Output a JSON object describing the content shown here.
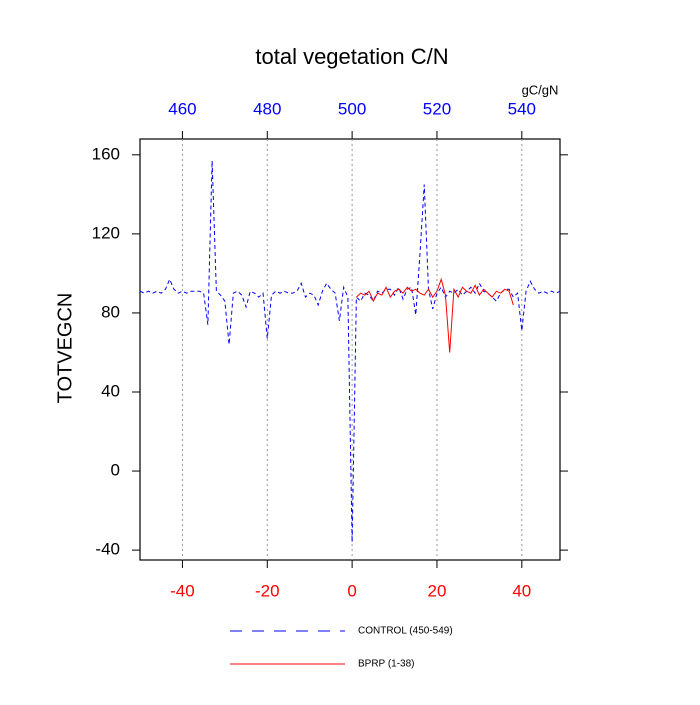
{
  "chart_data": {
    "type": "line",
    "title": "total vegetation C/N",
    "ylabel": "TOTVEGCN",
    "x2label": "gC/gN",
    "xlim": [
      -50,
      49
    ],
    "xticks": [
      -40,
      -20,
      0,
      20,
      40
    ],
    "xtick_color": "#ff0000",
    "x2lim": [
      450,
      549
    ],
    "x2ticks": [
      460,
      480,
      500,
      520,
      540
    ],
    "x2tick_color": "#0000ff",
    "ylim": [
      -45,
      168
    ],
    "yticks": [
      -40,
      0,
      40,
      80,
      120,
      160
    ],
    "grid": true,
    "series": [
      {
        "name": "CONTROL (450-549)",
        "color": "#0000ff",
        "dashed": true,
        "x": [
          -50,
          -49,
          -48,
          -47,
          -46,
          -45,
          -44,
          -43,
          -42,
          -41,
          -40,
          -39,
          -38,
          -37,
          -36,
          -35,
          -34,
          -33,
          -32,
          -31,
          -30,
          -29,
          -28,
          -27,
          -26,
          -25,
          -24,
          -23,
          -22,
          -21,
          -20,
          -19,
          -18,
          -17,
          -16,
          -15,
          -14,
          -13,
          -12,
          -11,
          -10,
          -9,
          -8,
          -7,
          -6,
          -5,
          -4,
          -3,
          -2,
          -1,
          0,
          1,
          2,
          3,
          4,
          5,
          6,
          7,
          8,
          9,
          10,
          11,
          12,
          13,
          14,
          15,
          16,
          17,
          18,
          19,
          20,
          21,
          22,
          23,
          24,
          25,
          26,
          27,
          28,
          29,
          30,
          31,
          32,
          33,
          34,
          35,
          36,
          37,
          38,
          39,
          40,
          41,
          42,
          43,
          44,
          45,
          46,
          47,
          48,
          49
        ],
        "values": [
          91,
          90,
          91,
          90,
          91,
          90,
          92,
          97,
          92,
          90,
          91,
          90,
          91,
          91,
          91,
          90,
          74,
          157,
          91,
          89,
          86,
          64,
          90,
          91,
          89,
          83,
          91,
          90,
          88,
          90,
          67,
          89,
          91,
          90,
          91,
          90,
          90,
          91,
          95,
          88,
          90,
          89,
          84,
          91,
          95,
          92,
          90,
          76,
          93,
          88,
          -36,
          88,
          86,
          90,
          89,
          86,
          91,
          90,
          92,
          92,
          89,
          93,
          87,
          92,
          93,
          79,
          110,
          145,
          92,
          82,
          90,
          93,
          88,
          91,
          90,
          92,
          89,
          91,
          93,
          90,
          95,
          91,
          90,
          88,
          86,
          90,
          92,
          92,
          88,
          90,
          71,
          91,
          96,
          92,
          90,
          91,
          90,
          91,
          90,
          91
        ]
      },
      {
        "name": "BPRP (1-38)",
        "color": "#ff0000",
        "dashed": false,
        "x": [
          1,
          2,
          3,
          4,
          5,
          6,
          7,
          8,
          9,
          10,
          11,
          12,
          13,
          14,
          15,
          16,
          17,
          18,
          19,
          20,
          21,
          22,
          23,
          24,
          25,
          26,
          27,
          28,
          29,
          30,
          31,
          32,
          33,
          34,
          35,
          36,
          37,
          38
        ],
        "values": [
          88,
          90,
          89,
          91,
          86,
          90,
          89,
          93,
          88,
          91,
          92,
          90,
          93,
          91,
          92,
          90,
          89,
          92,
          88,
          91,
          97,
          89,
          60,
          92,
          88,
          93,
          91,
          90,
          94,
          89,
          92,
          90,
          88,
          91,
          90,
          92,
          91,
          84
        ]
      }
    ]
  }
}
